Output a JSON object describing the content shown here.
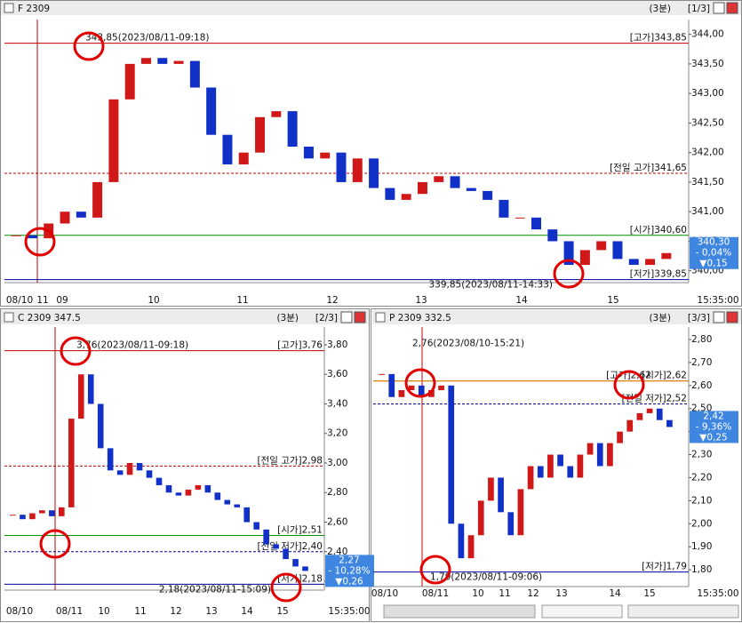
{
  "panels": [
    {
      "title": "F 2309",
      "interval": "(3분)",
      "page": "[1/3]",
      "ylim": [
        339.8,
        344.25
      ],
      "yticks": [
        {
          "value": 340,
          "label": "340,00"
        },
        {
          "value": 340.5,
          "label": "340,50"
        },
        {
          "value": 341,
          "label": "341,00"
        },
        {
          "value": 341.5,
          "label": "341,50"
        },
        {
          "value": 342,
          "label": "342,00"
        },
        {
          "value": 342.5,
          "label": "342,50"
        },
        {
          "value": 343,
          "label": "343,00"
        },
        {
          "value": 343.5,
          "label": "343,50"
        },
        {
          "value": 344,
          "label": "344,00"
        }
      ],
      "x_labels": [
        "08/10",
        "11",
        "09",
        "10",
        "11",
        "12",
        "13",
        "14",
        "15",
        "15:35:00"
      ],
      "levels": [
        {
          "label": "[고가]343,85",
          "value": 343.85,
          "color": "#c00000",
          "dashed": false
        },
        {
          "label": "[전일 고가]341,65",
          "value": 341.65,
          "color": "#c00000",
          "dashed": true
        },
        {
          "label": "[시가]340,60",
          "value": 340.6,
          "color": "#009000",
          "dashed": false
        },
        {
          "label": "[저가]339,85",
          "value": 339.85,
          "color": "#0000a0",
          "dashed": false
        }
      ],
      "notes": [
        {
          "text": "343,85(2023/08/11-09:18)",
          "value": 343.85
        },
        {
          "text": "339,85(2023/08/11-14:33)",
          "value": 339.85
        }
      ],
      "price_box": [
        "340,30",
        "- 0,04%",
        "▼0,15"
      ],
      "price_value": 340.3,
      "prices": [
        340.6,
        340.55,
        340.8,
        341.0,
        340.9,
        341.5,
        342.9,
        343.5,
        343.6,
        343.5,
        343.55,
        343.1,
        342.3,
        341.8,
        342.0,
        342.6,
        342.7,
        342.1,
        341.9,
        342.0,
        341.5,
        341.9,
        341.4,
        341.2,
        341.3,
        341.5,
        341.6,
        341.4,
        341.35,
        341.2,
        340.9,
        340.9,
        340.7,
        340.5,
        340.1,
        340.35,
        340.5,
        340.2,
        340.1,
        340.2,
        340.3
      ]
    },
    {
      "title": "C 2309 347.5",
      "interval": "(3분)",
      "page": "[2/3]",
      "ylim": [
        2.14,
        3.92
      ],
      "yticks": [
        {
          "value": 2.2,
          "label": "2,20"
        },
        {
          "value": 2.4,
          "label": "2,40"
        },
        {
          "value": 2.6,
          "label": "2,60"
        },
        {
          "value": 2.8,
          "label": "2,80"
        },
        {
          "value": 3,
          "label": "3,00"
        },
        {
          "value": 3.2,
          "label": "3,20"
        },
        {
          "value": 3.4,
          "label": "3,40"
        },
        {
          "value": 3.6,
          "label": "3,60"
        },
        {
          "value": 3.8,
          "label": "3,80"
        }
      ],
      "x_labels": [
        "08/10",
        "08/11",
        "10",
        "11",
        "12",
        "13",
        "14",
        "15",
        "15:35:00"
      ],
      "levels": [
        {
          "label": "[고가]3,76",
          "value": 3.76,
          "color": "#c00000",
          "dashed": false
        },
        {
          "label": "[전일 고가]2,98",
          "value": 2.98,
          "color": "#c00000",
          "dashed": true
        },
        {
          "label": "[시가]2,51",
          "value": 2.51,
          "color": "#009000",
          "dashed": false
        },
        {
          "label": "[전일 저가]2,40",
          "value": 2.4,
          "color": "#0000a0",
          "dashed": true
        },
        {
          "label": "[저가]2,18",
          "value": 2.18,
          "color": "#0000a0",
          "dashed": false
        }
      ],
      "notes": [
        {
          "text": "3,76(2023/08/11-09:18)",
          "value": 3.76
        },
        {
          "text": "2,18(2023/08/11-15:09)",
          "value": 2.18
        }
      ],
      "price_box": [
        "2,27",
        "- 10,28%",
        "▼0,26"
      ],
      "price_value": 2.27,
      "prices": [
        2.65,
        2.62,
        2.66,
        2.68,
        2.64,
        2.7,
        3.3,
        3.6,
        3.4,
        3.1,
        2.95,
        2.92,
        3.0,
        2.95,
        2.9,
        2.85,
        2.8,
        2.78,
        2.82,
        2.85,
        2.8,
        2.75,
        2.72,
        2.7,
        2.6,
        2.55,
        2.45,
        2.42,
        2.35,
        2.3,
        2.27
      ]
    },
    {
      "title": "P 2309 332.5",
      "interval": "(3분)",
      "page": "[3/3]",
      "ylim": [
        1.727,
        2.854
      ],
      "yticks": [
        {
          "value": 1.8,
          "label": "1,80"
        },
        {
          "value": 1.9,
          "label": "1,90"
        },
        {
          "value": 2,
          "label": "2,00"
        },
        {
          "value": 2.1,
          "label": "2,10"
        },
        {
          "value": 2.2,
          "label": "2,20"
        },
        {
          "value": 2.3,
          "label": "2,30"
        },
        {
          "value": 2.4,
          "label": "2,40"
        },
        {
          "value": 2.5,
          "label": "2,50"
        },
        {
          "value": 2.6,
          "label": "2,60"
        },
        {
          "value": 2.7,
          "label": "2,70"
        },
        {
          "value": 2.8,
          "label": "2,80"
        }
      ],
      "x_labels": [
        "08/10",
        "08/11",
        "10",
        "11",
        "12",
        "13",
        "14",
        "15",
        "15:35:00"
      ],
      "levels": [
        {
          "label": "[고가]2,62",
          "value": 2.62,
          "color": "#c00000",
          "dashed": false
        },
        {
          "label": "[시가]2,62",
          "value": 2.62,
          "color": "#e09000",
          "dashed": false
        },
        {
          "label": "[전일 저가]2,52",
          "value": 2.52,
          "color": "#0000a0",
          "dashed": true
        },
        {
          "label": "[저가]1,79",
          "value": 1.79,
          "color": "#0000a0",
          "dashed": false
        }
      ],
      "notes": [
        {
          "text": "2,76(2023/08/10-15:21)",
          "value": 2.76
        },
        {
          "text": "1,79(2023/08/11-09:06)",
          "value": 1.79
        }
      ],
      "price_box": [
        "2,42",
        "- 9,36%",
        "▼0,25"
      ],
      "price_value": 2.42,
      "prices": [
        2.65,
        2.55,
        2.58,
        2.6,
        2.55,
        2.58,
        2.6,
        2.0,
        1.85,
        1.95,
        2.1,
        2.2,
        2.05,
        1.95,
        2.15,
        2.25,
        2.2,
        2.3,
        2.25,
        2.2,
        2.3,
        2.35,
        2.25,
        2.35,
        2.4,
        2.45,
        2.48,
        2.5,
        2.45,
        2.42
      ]
    }
  ]
}
